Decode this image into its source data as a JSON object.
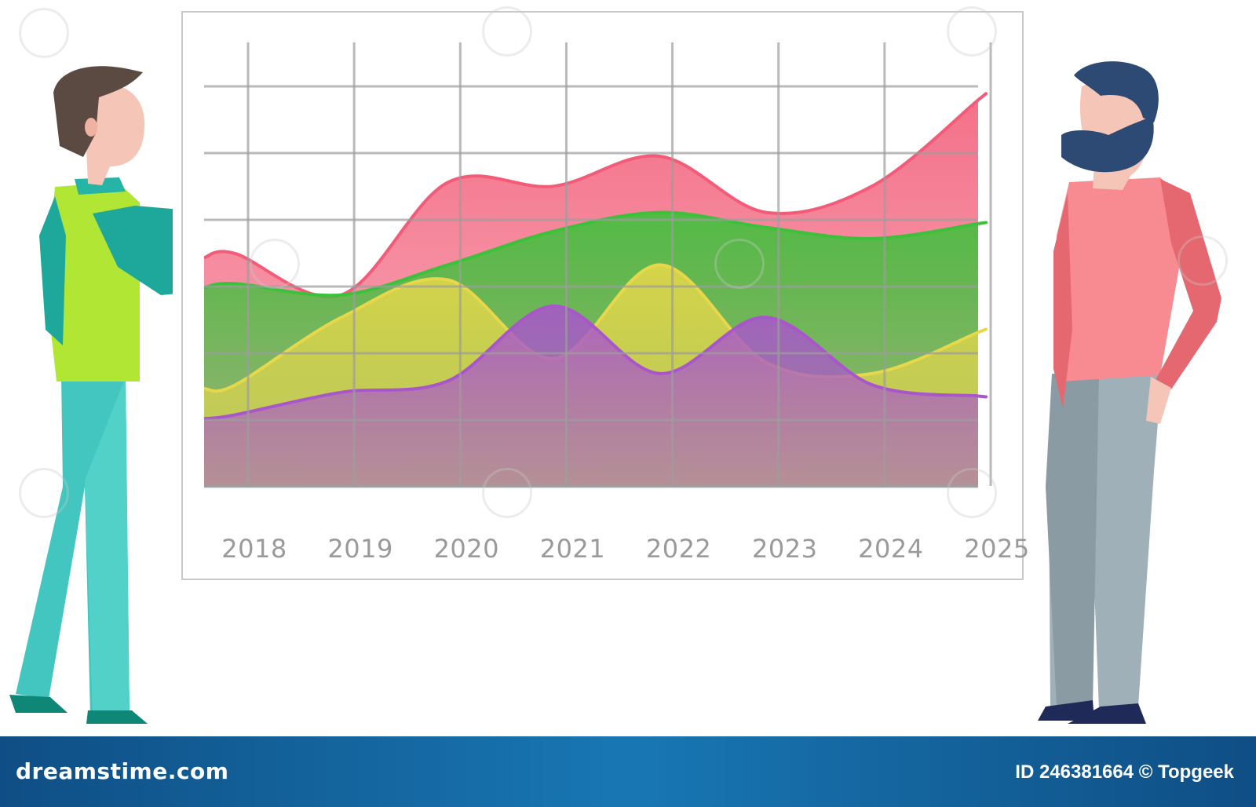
{
  "chart_data": {
    "type": "area",
    "x": [
      "2018",
      "2019",
      "2020",
      "2021",
      "2022",
      "2023",
      "2024",
      "2025"
    ],
    "grid": true,
    "series": [
      {
        "color": "#f25c78",
        "values": [
          6.2,
          5.1,
          8.1,
          8.0,
          8.8,
          7.3,
          8.0,
          10.3
        ]
      },
      {
        "color": "#3cc23a",
        "values": [
          5.4,
          5.1,
          5.9,
          6.8,
          7.3,
          6.9,
          6.6,
          7.0
        ]
      },
      {
        "color": "#e6d84a",
        "values": [
          2.7,
          4.5,
          5.5,
          3.4,
          5.9,
          3.3,
          3.0,
          4.1
        ]
      },
      {
        "color": "#a955cc",
        "values": [
          1.9,
          2.5,
          2.8,
          4.8,
          3.0,
          4.5,
          2.7,
          2.4
        ]
      }
    ]
  },
  "footer": {
    "brand": "dreamstime.com",
    "image_id": "ID 246381664 © Topgeek"
  },
  "colors": {
    "footer_bg": "#1466a3",
    "grid": "#9c9c9c",
    "board_border": "#c9c9c9"
  }
}
